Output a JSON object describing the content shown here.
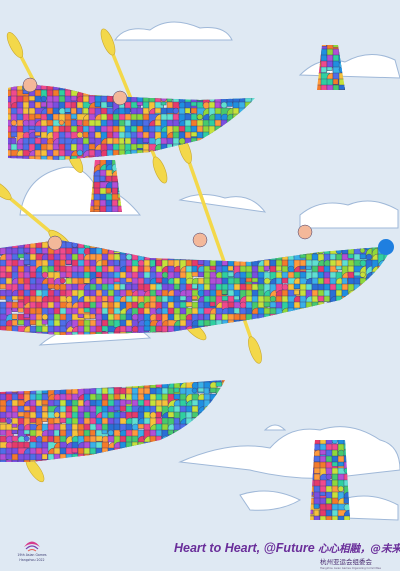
{
  "logo": {
    "line1": "19th Asian Games",
    "line2": "Hangzhou 2022"
  },
  "slogan": {
    "english": "Heart to Heart, @Future",
    "chinese": "心心相融，@未来"
  },
  "organizer": {
    "chinese": "杭州亚运会组委会",
    "english": "Hangzhou Asian Games Organizing Committee"
  }
}
